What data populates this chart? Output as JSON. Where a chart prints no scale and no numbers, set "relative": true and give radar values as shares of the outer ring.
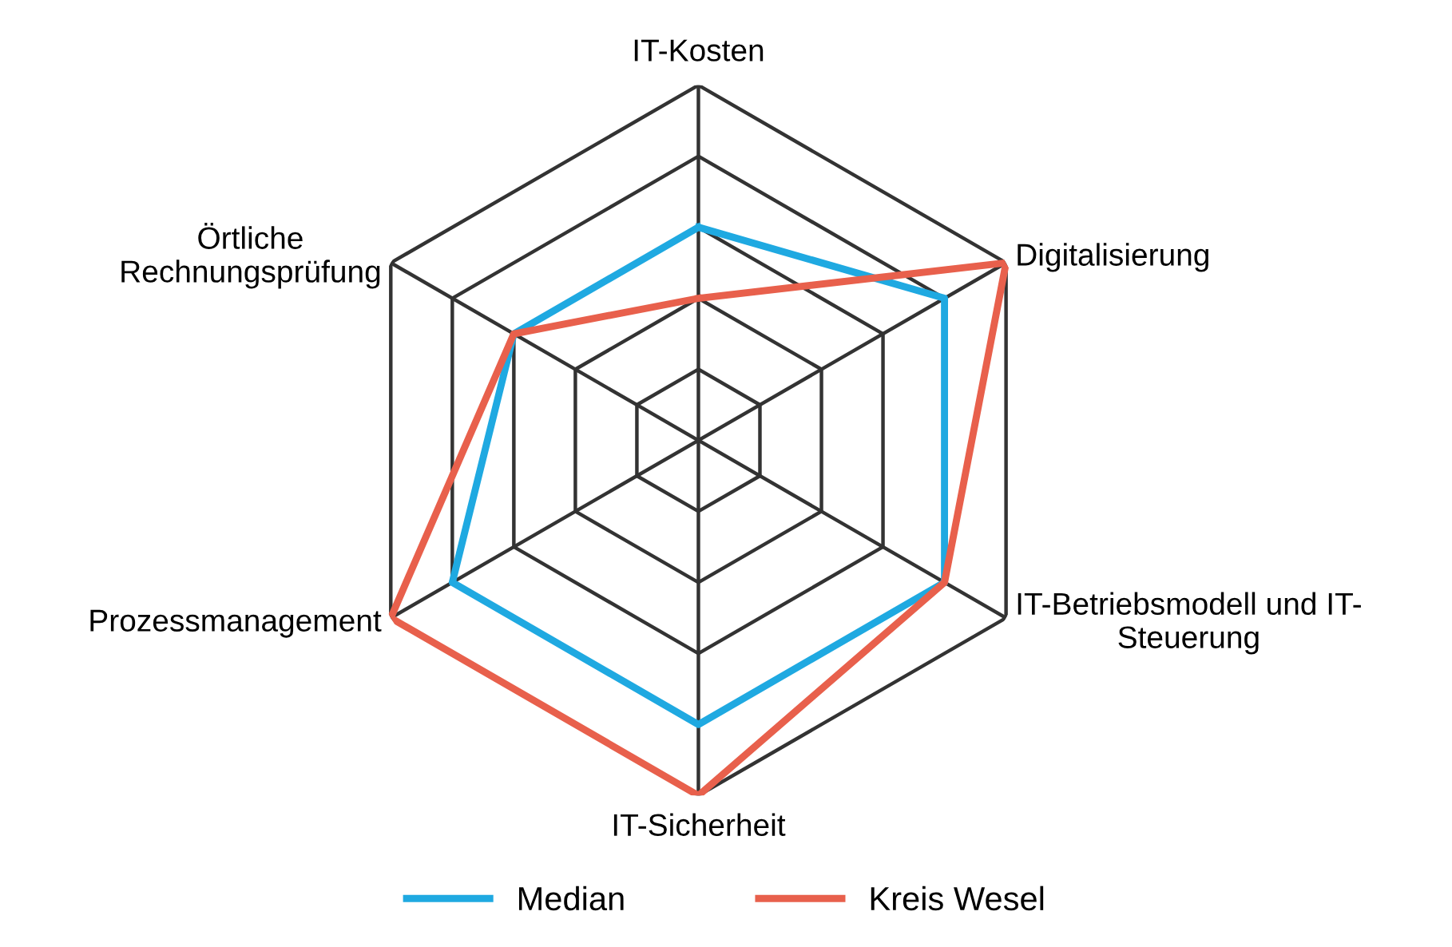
{
  "chart_data": {
    "type": "radar",
    "relative": true,
    "grid": true,
    "legend": "bottom",
    "categories": [
      "IT-Kosten",
      "Digitalisierung",
      "IT-Betriebsmodell und IT-\nSteuerung",
      "IT-Sicherheit",
      "Prozessmanagement",
      "Örtliche\nRechnungsprüfung"
    ],
    "series": [
      {
        "name": "Median",
        "color": "#1fa9e1",
        "values": [
          0.6,
          0.8,
          0.8,
          0.8,
          0.8,
          0.6
        ]
      },
      {
        "name": "Kreis Wesel",
        "color": "#e8604c",
        "values": [
          0.4,
          1.0,
          0.8,
          1.0,
          1.0,
          0.6
        ]
      }
    ]
  }
}
